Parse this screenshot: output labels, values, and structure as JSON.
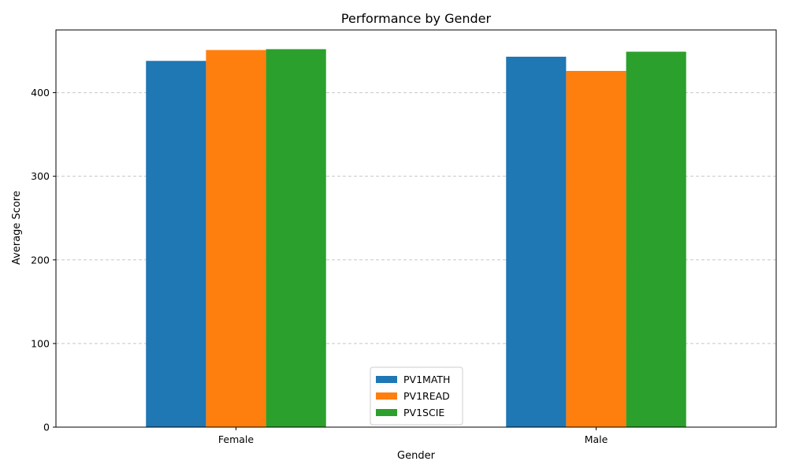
{
  "chart_data": {
    "type": "bar",
    "title": "Performance by Gender",
    "xlabel": "Gender",
    "ylabel": "Average Score",
    "categories": [
      "Female",
      "Male"
    ],
    "series": [
      {
        "name": "PV1MATH",
        "color": "#1f77b4",
        "values": [
          438,
          443
        ]
      },
      {
        "name": "PV1READ",
        "color": "#ff7f0e",
        "values": [
          451,
          426
        ]
      },
      {
        "name": "PV1SCIE",
        "color": "#2ca02c",
        "values": [
          452,
          449
        ]
      }
    ],
    "ylim": [
      0,
      475
    ],
    "yticks": [
      0,
      100,
      200,
      300,
      400
    ],
    "grid": {
      "axis": "y",
      "style": "dashed"
    },
    "legend": {
      "position": "bottom-center"
    }
  }
}
